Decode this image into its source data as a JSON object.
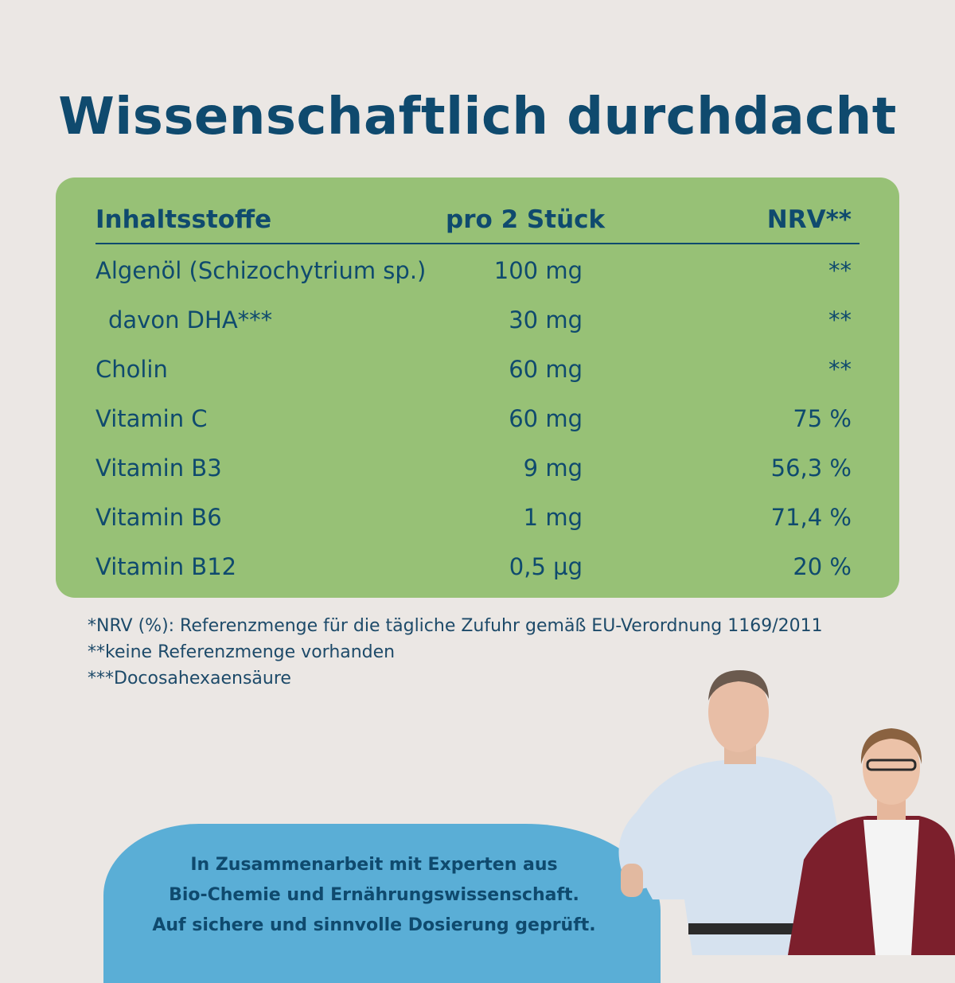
{
  "title": "Wissenschaftlich durchdacht",
  "table": {
    "headers": [
      "Inhaltsstoffe",
      "pro 2 Stück",
      "NRV**"
    ],
    "rows": [
      {
        "name": "Algenöl (Schizochytrium sp.)",
        "amount": "100 mg",
        "nrv": "**"
      },
      {
        "name": "davon DHA***",
        "amount": "30 mg",
        "nrv": "**"
      },
      {
        "name": "Cholin",
        "amount": "60 mg",
        "nrv": "**"
      },
      {
        "name": "Vitamin C",
        "amount": "60 mg",
        "nrv": "75 %"
      },
      {
        "name": "Vitamin B3",
        "amount": "9 mg",
        "nrv": "56,3 %"
      },
      {
        "name": "Vitamin B6",
        "amount": "1 mg",
        "nrv": "71,4 %"
      },
      {
        "name": "Vitamin B12",
        "amount": "0,5 µg",
        "nrv": "20 %"
      }
    ]
  },
  "footnotes": [
    "*NRV (%): Referenzmenge für die tägliche Zufuhr gemäß EU-Verordnung 1169/2011",
    "**keine Referenzmenge vorhanden",
    "***Docosahexaensäure"
  ],
  "bubble": {
    "lines": [
      "In Zusammenarbeit mit Experten aus",
      "Bio-Chemie und Ernährungswissenschaft.",
      "Auf sichere und sinnvolle Dosierung geprüft."
    ]
  },
  "colors": {
    "background": "#ebe7e4",
    "card": "#97c176",
    "text": "#0f4a6e",
    "bubble": "#5aaed6"
  }
}
